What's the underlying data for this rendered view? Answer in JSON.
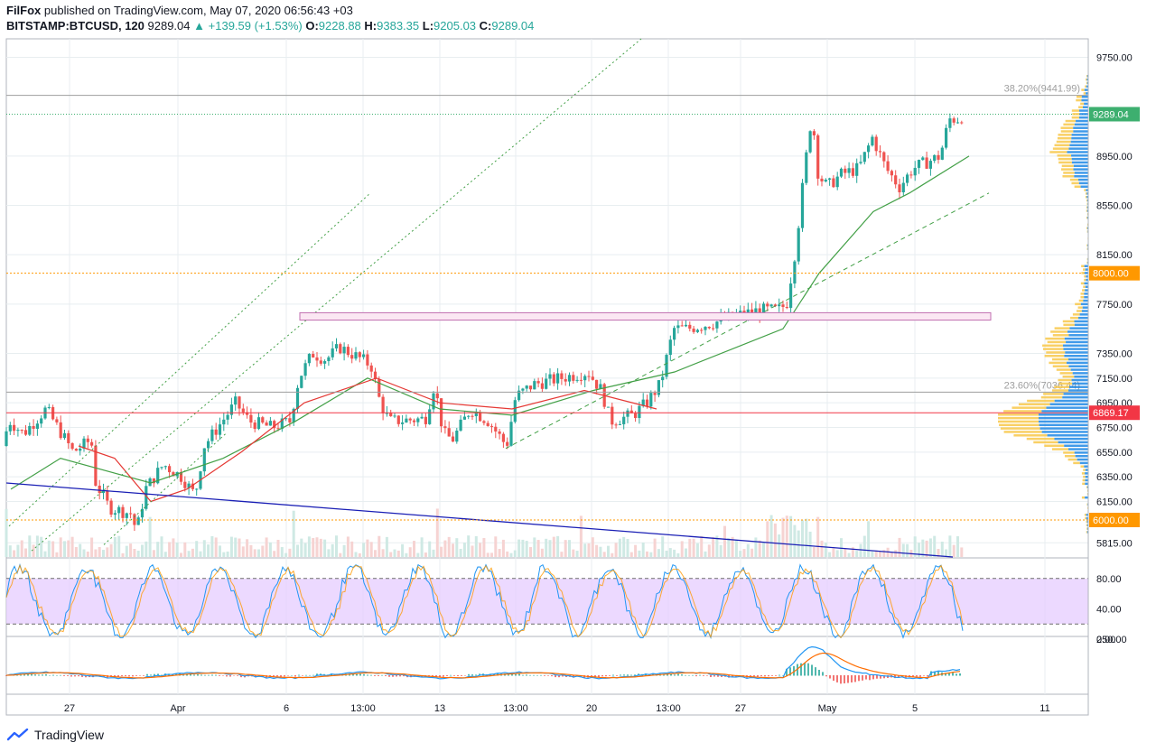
{
  "header": {
    "author": "FilFox",
    "published_text": "published on TradingView.com, May 07, 2020 06:56:43 +03",
    "symbol": "BITSTAMP:BTCUSD, 120",
    "last": "9289.04",
    "change": "+139.59 (+1.53%)",
    "o_label": "O:",
    "o_value": "9228.88",
    "h_label": "H:",
    "h_value": "9383.35",
    "l_label": "L:",
    "l_value": "9205.03",
    "c_label": "C:",
    "c_value": "9289.04"
  },
  "footer": {
    "brand": "TradingView"
  },
  "colors": {
    "up": "#26a69a",
    "down": "#ef5350",
    "grid": "#e8eef0",
    "sma_green": "#43a047",
    "sma_red": "#e53935",
    "trend_blue": "#1a1fb5",
    "level_orange": "#ff9800",
    "level_red": "#f23645",
    "price_green": "#3daf6f",
    "vp_blue": "#1e88e5",
    "vp_yellow": "#f8c84a",
    "rsi_band": "#e6ccff",
    "macd": "#2196f3",
    "signal": "#ff6d00"
  },
  "chart_data": {
    "type": "candlestick",
    "symbol": "BITSTAMP:BTCUSD",
    "interval": "120",
    "x_tick_labels": [
      "27",
      "Apr",
      "6",
      "13:00",
      "13",
      "13:00",
      "20",
      "13:00",
      "27",
      "May",
      "5",
      "11"
    ],
    "price_axis_labels": [
      "9750.00",
      "8950.00",
      "8550.00",
      "8150.00",
      "7750.00",
      "7350.00",
      "7150.00",
      "6950.00",
      "6750.00",
      "6550.00",
      "6350.00",
      "6150.00",
      "5815.00"
    ],
    "ylim": [
      5700,
      9900
    ],
    "close_path_anchors": [
      [
        0,
        6600
      ],
      [
        10,
        6800
      ],
      [
        25,
        6700
      ],
      [
        50,
        6900
      ],
      [
        80,
        6550
      ],
      [
        100,
        6650
      ],
      [
        105,
        6300
      ],
      [
        120,
        6100
      ],
      [
        145,
        6050
      ],
      [
        150,
        5900
      ],
      [
        160,
        6250
      ],
      [
        180,
        6450
      ],
      [
        200,
        6350
      ],
      [
        215,
        6200
      ],
      [
        225,
        6600
      ],
      [
        240,
        6750
      ],
      [
        260,
        6950
      ],
      [
        275,
        6800
      ],
      [
        300,
        6750
      ],
      [
        320,
        6800
      ],
      [
        330,
        7150
      ],
      [
        345,
        7350
      ],
      [
        360,
        7300
      ],
      [
        375,
        7400
      ],
      [
        400,
        7300
      ],
      [
        410,
        7250
      ],
      [
        420,
        6950
      ],
      [
        430,
        6800
      ],
      [
        470,
        6820
      ],
      [
        480,
        7100
      ],
      [
        490,
        6700
      ],
      [
        500,
        6650
      ],
      [
        520,
        6900
      ],
      [
        540,
        6800
      ],
      [
        560,
        6600
      ],
      [
        570,
        7000
      ],
      [
        590,
        7100
      ],
      [
        620,
        7150
      ],
      [
        650,
        7200
      ],
      [
        665,
        7050
      ],
      [
        675,
        6800
      ],
      [
        700,
        6850
      ],
      [
        715,
        6950
      ],
      [
        730,
        7100
      ],
      [
        745,
        7550
      ],
      [
        760,
        7550
      ],
      [
        790,
        7600
      ],
      [
        810,
        7650
      ],
      [
        840,
        7700
      ],
      [
        860,
        7700
      ],
      [
        870,
        7750
      ],
      [
        880,
        8200
      ],
      [
        890,
        8850
      ],
      [
        898,
        9300
      ],
      [
        905,
        8800
      ],
      [
        915,
        8700
      ],
      [
        930,
        8800
      ],
      [
        950,
        8850
      ],
      [
        965,
        9100
      ],
      [
        980,
        8850
      ],
      [
        995,
        8700
      ],
      [
        1010,
        8850
      ],
      [
        1025,
        8900
      ],
      [
        1040,
        8950
      ],
      [
        1050,
        9250
      ],
      [
        1060,
        9250
      ],
      [
        1066,
        9289.04
      ]
    ],
    "indicators": {
      "sma_green_anchors": [
        [
          5,
          6250
        ],
        [
          60,
          6500
        ],
        [
          160,
          6300
        ],
        [
          240,
          6500
        ],
        [
          320,
          6800
        ],
        [
          400,
          7150
        ],
        [
          480,
          6900
        ],
        [
          560,
          6850
        ],
        [
          650,
          7050
        ],
        [
          740,
          7200
        ],
        [
          860,
          7550
        ],
        [
          900,
          8000
        ],
        [
          960,
          8500
        ],
        [
          1000,
          8650
        ],
        [
          1066,
          8950
        ]
      ],
      "sma_red_anchors": [
        [
          80,
          6600
        ],
        [
          120,
          6500
        ],
        [
          160,
          6150
        ],
        [
          200,
          6250
        ],
        [
          260,
          6550
        ],
        [
          330,
          6950
        ],
        [
          410,
          7150
        ],
        [
          480,
          6950
        ],
        [
          560,
          6900
        ],
        [
          640,
          7050
        ],
        [
          720,
          6900
        ]
      ]
    },
    "levels": [
      {
        "label": "8000.00",
        "value": 8000,
        "color": "#ff9800"
      },
      {
        "label": "6000.00",
        "value": 6000,
        "color": "#ff9800"
      },
      {
        "label": "6869.17",
        "value": 6869.17,
        "color": "#f23645"
      },
      {
        "label": "9289.04",
        "value": 9289.04,
        "color": "#3daf6f"
      }
    ],
    "fib_labels": [
      {
        "text": "38.20%(9441.99)",
        "value": 9441.99
      },
      {
        "text": "23.60%(7036.44)",
        "value": 7036.44
      }
    ],
    "rsi": {
      "axis_labels": [
        "80.00",
        "40.00",
        "0.00"
      ],
      "band": [
        20,
        80
      ]
    },
    "macd": {
      "axis_labels": [
        "250.00"
      ]
    }
  }
}
